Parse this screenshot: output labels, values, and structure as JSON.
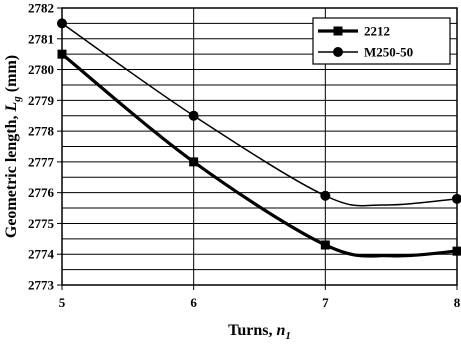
{
  "chart_data": {
    "type": "line",
    "xlabel": "Turns, ",
    "xlabel_var": "n",
    "xlabel_sub": "1",
    "ylabel": "Geometric length, ",
    "ylabel_var": "L",
    "ylabel_sub": "g",
    "ylabel_unit": "  (mm)",
    "x": [
      5,
      6,
      7,
      8
    ],
    "xlim": [
      5,
      8
    ],
    "ylim": [
      2773,
      2782
    ],
    "xticks": [
      5,
      6,
      7,
      8
    ],
    "yticks": [
      2773,
      2774,
      2775,
      2776,
      2777,
      2778,
      2779,
      2780,
      2781,
      2782
    ],
    "minor_grid_step": 0.5,
    "grid": true,
    "legend_position": "top-right",
    "series": [
      {
        "name": "2212",
        "marker": "square",
        "line_width": "thick",
        "values": [
          2780.5,
          2777.0,
          2774.3,
          2774.1
        ],
        "curve_min": [
          7.5,
          2773.95
        ]
      },
      {
        "name": "M250-50",
        "marker": "circle",
        "line_width": "thin",
        "values": [
          2781.5,
          2778.5,
          2775.9,
          2775.8
        ],
        "curve_min": [
          7.45,
          2775.6
        ]
      }
    ]
  }
}
